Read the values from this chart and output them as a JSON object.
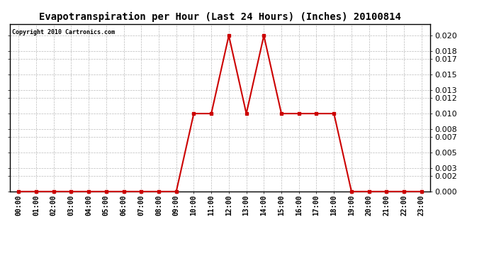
{
  "title": "Evapotranspiration per Hour (Last 24 Hours) (Inches) 20100814",
  "copyright": "Copyright 2010 Cartronics.com",
  "hours": [
    "00:00",
    "01:00",
    "02:00",
    "03:00",
    "04:00",
    "05:00",
    "06:00",
    "07:00",
    "08:00",
    "09:00",
    "10:00",
    "11:00",
    "12:00",
    "13:00",
    "14:00",
    "15:00",
    "16:00",
    "17:00",
    "18:00",
    "19:00",
    "20:00",
    "21:00",
    "22:00",
    "23:00"
  ],
  "values": [
    0.0,
    0.0,
    0.0,
    0.0,
    0.0,
    0.0,
    0.0,
    0.0,
    0.0,
    0.0,
    0.01,
    0.01,
    0.02,
    0.01,
    0.02,
    0.01,
    0.01,
    0.01,
    0.01,
    0.0,
    0.0,
    0.0,
    0.0,
    0.0
  ],
  "line_color": "#cc0000",
  "marker": "s",
  "marker_size": 2.5,
  "ylim": [
    0.0,
    0.0215
  ],
  "yticks": [
    0.0,
    0.002,
    0.003,
    0.005,
    0.007,
    0.008,
    0.01,
    0.012,
    0.013,
    0.015,
    0.017,
    0.018,
    0.02
  ],
  "background_color": "#ffffff",
  "plot_bg_color": "#ffffff",
  "grid_color": "#bbbbbb",
  "title_fontsize": 10,
  "copyright_fontsize": 6,
  "tick_fontsize": 7,
  "ytick_fontsize": 8,
  "border_color": "#000000"
}
